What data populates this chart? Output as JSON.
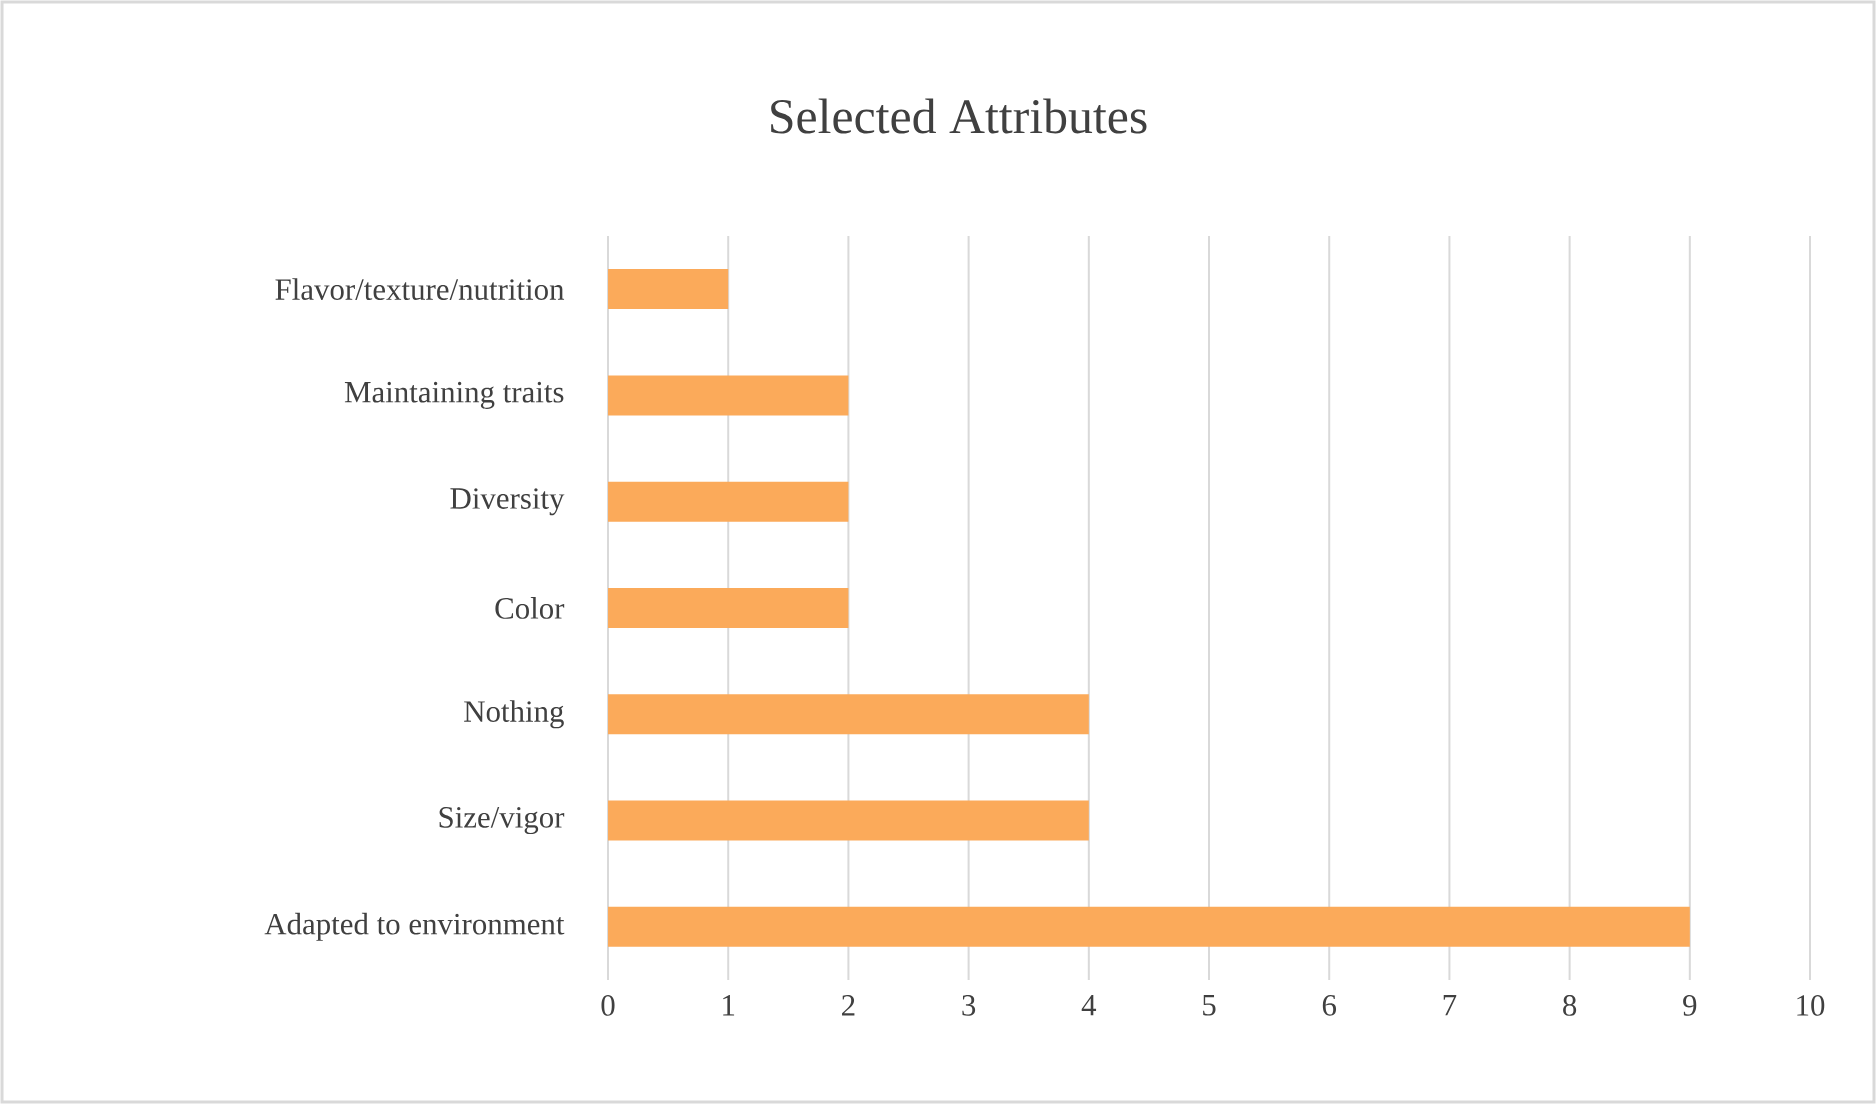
{
  "chart_data": {
    "type": "bar",
    "orientation": "horizontal",
    "title": "Selected Attributes",
    "categories": [
      "Flavor/texture/nutrition",
      "Maintaining traits",
      "Diversity",
      "Color",
      "Nothing",
      "Size/vigor",
      "Adapted to environment"
    ],
    "values": [
      1,
      2,
      2,
      2,
      4,
      4,
      9
    ],
    "color": "#fbaa5a",
    "xlim": [
      0,
      10
    ],
    "xticks": [
      0,
      1,
      2,
      3,
      4,
      5,
      6,
      7,
      8,
      9,
      10
    ],
    "grid": "x"
  }
}
